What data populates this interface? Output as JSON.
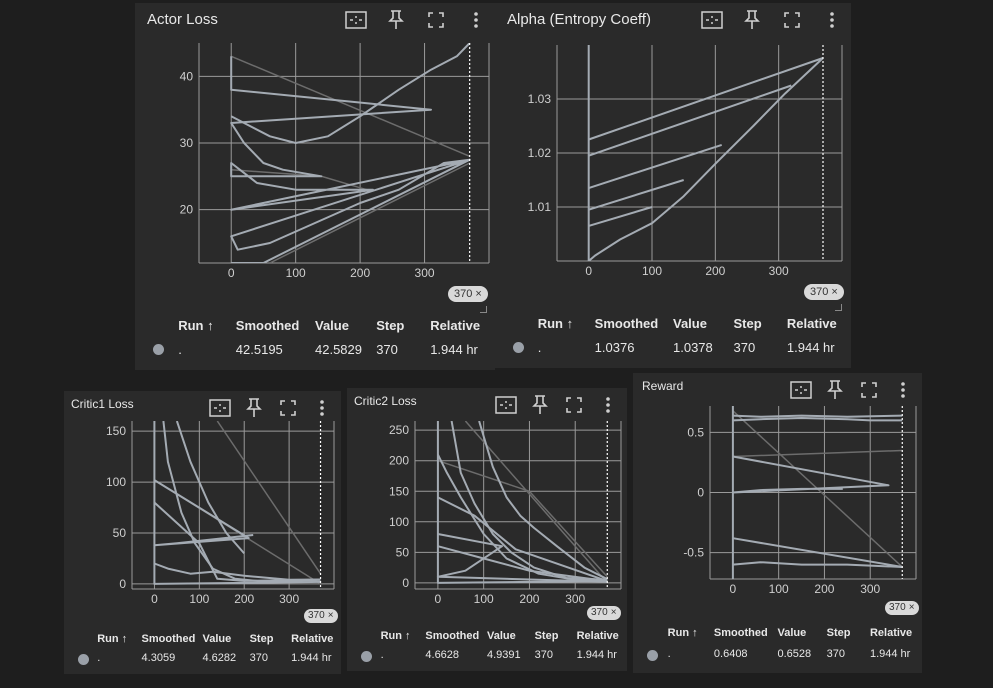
{
  "ui": {
    "colors": {
      "background": "#1e1e1e",
      "card": "#2a2a2a",
      "grid": "#9a9a9a",
      "series": "#a4abb3",
      "series_faint": "#6c6c6c"
    }
  },
  "charts": [
    {
      "title": "Actor Loss",
      "step_badge": "370",
      "table": {
        "headers": {
          "run": "Run ↑",
          "smoothed": "Smoothed",
          "value": "Value",
          "step": "Step",
          "relative": "Relative"
        },
        "row": {
          "run": ".",
          "smoothed": "42.5195",
          "value": "42.5829",
          "step": "370",
          "relative": "1.944 hr"
        }
      }
    },
    {
      "title": "Alpha (Entropy Coeff)",
      "step_badge": "370",
      "table": {
        "headers": {
          "run": "Run ↑",
          "smoothed": "Smoothed",
          "value": "Value",
          "step": "Step",
          "relative": "Relative"
        },
        "row": {
          "run": ".",
          "smoothed": "1.0376",
          "value": "1.0378",
          "step": "370",
          "relative": "1.944 hr"
        }
      }
    },
    {
      "title": "Critic1 Loss",
      "step_badge": "370",
      "table": {
        "headers": {
          "run": "Run ↑",
          "smoothed": "Smoothed",
          "value": "Value",
          "step": "Step",
          "relative": "Relative"
        },
        "row": {
          "run": ".",
          "smoothed": "4.3059",
          "value": "4.6282",
          "step": "370",
          "relative": "1.944 hr"
        }
      }
    },
    {
      "title": "Critic2 Loss",
      "step_badge": "370",
      "table": {
        "headers": {
          "run": "Run ↑",
          "smoothed": "Smoothed",
          "value": "Value",
          "step": "Step",
          "relative": "Relative"
        },
        "row": {
          "run": ".",
          "smoothed": "4.6628",
          "value": "4.9391",
          "step": "370",
          "relative": "1.944 hr"
        }
      }
    },
    {
      "title": "Reward",
      "step_badge": "370",
      "table": {
        "headers": {
          "run": "Run ↑",
          "smoothed": "Smoothed",
          "value": "Value",
          "step": "Step",
          "relative": "Relative"
        },
        "row": {
          "run": ".",
          "smoothed": "0.6408",
          "value": "0.6528",
          "step": "370",
          "relative": "1.944 hr"
        }
      }
    }
  ],
  "chart_data": [
    {
      "type": "line",
      "title": "Actor Loss",
      "xlim": [
        -50,
        400
      ],
      "ylim": [
        12,
        45
      ],
      "xticks": [
        0,
        100,
        200,
        300
      ],
      "yticks": [
        20,
        30,
        40
      ],
      "ytick_labels": [
        "20",
        "30",
        "40"
      ],
      "grid": true,
      "step_marker": 370,
      "series": [
        {
          "points": [
            [
              0,
              43
            ],
            [
              0,
              38
            ],
            [
              310,
              35
            ],
            [
              0,
              33
            ],
            [
              20,
              30
            ],
            [
              50,
              27
            ],
            [
              80,
              26
            ],
            [
              140,
              25
            ],
            [
              0,
              25
            ],
            [
              0,
              27
            ],
            [
              40,
              24
            ],
            [
              100,
              23
            ],
            [
              220,
              23
            ],
            [
              0,
              20
            ],
            [
              370,
              27.5
            ],
            [
              0,
              16
            ],
            [
              10,
              14
            ],
            [
              60,
              15
            ],
            [
              130,
              18
            ],
            [
              200,
              21
            ],
            [
              260,
              23
            ],
            [
              330,
              27
            ],
            [
              370,
              27.5
            ],
            [
              50,
              12
            ],
            [
              0,
              12
            ]
          ]
        },
        {
          "points": [
            [
              0,
              34
            ],
            [
              20,
              33
            ],
            [
              60,
              31
            ],
            [
              100,
              30
            ],
            [
              150,
              31
            ],
            [
              200,
              34
            ],
            [
              260,
              38
            ],
            [
              310,
              41
            ],
            [
              350,
              43
            ],
            [
              370,
              45
            ]
          ]
        }
      ],
      "faint_series": [
        {
          "points": [
            [
              0,
              43
            ],
            [
              370,
              28
            ]
          ]
        },
        {
          "points": [
            [
              0,
              26
            ],
            [
              140,
              25
            ],
            [
              210,
              23
            ]
          ]
        },
        {
          "points": [
            [
              60,
              12
            ],
            [
              370,
              27
            ]
          ]
        }
      ]
    },
    {
      "type": "line",
      "title": "Alpha (Entropy Coeff)",
      "xlim": [
        -50,
        400
      ],
      "ylim": [
        1.0,
        1.04
      ],
      "xticks": [
        0,
        100,
        200,
        300
      ],
      "yticks": [
        1.01,
        1.02,
        1.03
      ],
      "ytick_labels": [
        "1.01",
        "1.02",
        "1.03"
      ],
      "grid": true,
      "step_marker": 370,
      "series": [
        {
          "points": [
            [
              0,
              1.04
            ],
            [
              0,
              1.0
            ],
            [
              10,
              1.001
            ],
            [
              50,
              1.004
            ],
            [
              100,
              1.007
            ],
            [
              150,
              1.012
            ],
            [
              200,
              1.018
            ],
            [
              260,
              1.025
            ],
            [
              310,
              1.031
            ],
            [
              370,
              1.0376
            ]
          ]
        },
        {
          "points": [
            [
              0,
              1.0225
            ],
            [
              370,
              1.0376
            ]
          ]
        },
        {
          "points": [
            [
              0,
              1.0195
            ],
            [
              320,
              1.0325
            ]
          ]
        },
        {
          "points": [
            [
              0,
              1.0135
            ],
            [
              210,
              1.0215
            ]
          ]
        },
        {
          "points": [
            [
              0,
              1.0095
            ],
            [
              150,
              1.015
            ]
          ]
        },
        {
          "points": [
            [
              0,
              1.0065
            ],
            [
              100,
              1.01
            ]
          ]
        }
      ],
      "faint_series": []
    },
    {
      "type": "line",
      "title": "Critic1 Loss",
      "xlim": [
        -50,
        400
      ],
      "ylim": [
        -5,
        160
      ],
      "xticks": [
        0,
        100,
        200,
        300
      ],
      "yticks": [
        0,
        50,
        100,
        150
      ],
      "ytick_labels": [
        "0",
        "50",
        "100",
        "150"
      ],
      "grid": true,
      "step_marker": 370,
      "series": [
        {
          "points": [
            [
              0,
              160
            ],
            [
              0,
              0
            ],
            [
              370,
              2
            ]
          ]
        },
        {
          "points": [
            [
              0,
              102
            ],
            [
              210,
              45
            ],
            [
              0,
              38
            ],
            [
              50,
              40
            ],
            [
              220,
              48
            ]
          ]
        },
        {
          "points": [
            [
              0,
              80
            ],
            [
              100,
              40
            ],
            [
              140,
              5
            ],
            [
              200,
              3
            ],
            [
              370,
              4
            ]
          ]
        },
        {
          "points": [
            [
              20,
              160
            ],
            [
              30,
              120
            ],
            [
              60,
              70
            ],
            [
              90,
              40
            ],
            [
              130,
              15
            ],
            [
              180,
              5
            ],
            [
              250,
              2
            ],
            [
              370,
              4
            ]
          ]
        },
        {
          "points": [
            [
              50,
              160
            ],
            [
              80,
              120
            ],
            [
              120,
              80
            ],
            [
              160,
              50
            ],
            [
              200,
              30
            ]
          ]
        },
        {
          "points": [
            [
              0,
              20
            ],
            [
              30,
              15
            ],
            [
              80,
              10
            ],
            [
              130,
              12
            ],
            [
              200,
              8
            ],
            [
              300,
              4
            ],
            [
              370,
              4.3
            ]
          ]
        }
      ],
      "faint_series": [
        {
          "points": [
            [
              0,
              102
            ],
            [
              370,
              0
            ]
          ]
        },
        {
          "points": [
            [
              140,
              160
            ],
            [
              370,
              10
            ]
          ]
        }
      ]
    },
    {
      "type": "line",
      "title": "Critic2 Loss",
      "xlim": [
        -50,
        400
      ],
      "ylim": [
        -10,
        265
      ],
      "xticks": [
        0,
        100,
        200,
        300
      ],
      "yticks": [
        0,
        50,
        100,
        150,
        200,
        250
      ],
      "ytick_labels": [
        "0",
        "50",
        "100",
        "150",
        "200",
        "250"
      ],
      "grid": true,
      "step_marker": 370,
      "series": [
        {
          "points": [
            [
              0,
              265
            ],
            [
              0,
              0
            ],
            [
              370,
              3
            ]
          ]
        },
        {
          "points": [
            [
              0,
              210
            ],
            [
              20,
              180
            ],
            [
              50,
              140
            ],
            [
              100,
              80
            ],
            [
              150,
              40
            ],
            [
              220,
              15
            ],
            [
              300,
              5
            ],
            [
              370,
              4.7
            ]
          ]
        },
        {
          "points": [
            [
              30,
              265
            ],
            [
              50,
              180
            ],
            [
              80,
              130
            ],
            [
              120,
              80
            ],
            [
              160,
              50
            ],
            [
              210,
              25
            ],
            [
              280,
              8
            ],
            [
              370,
              5
            ]
          ]
        },
        {
          "points": [
            [
              0,
              140
            ],
            [
              80,
              110
            ],
            [
              170,
              55
            ],
            [
              370,
              3
            ]
          ]
        },
        {
          "points": [
            [
              0,
              80
            ],
            [
              140,
              60
            ],
            [
              60,
              20
            ],
            [
              0,
              10
            ],
            [
              370,
              2
            ]
          ]
        },
        {
          "points": [
            [
              0,
              60
            ],
            [
              100,
              40
            ],
            [
              200,
              20
            ],
            [
              370,
              3
            ]
          ]
        },
        {
          "points": [
            [
              90,
              265
            ],
            [
              120,
              190
            ],
            [
              150,
              140
            ],
            [
              180,
              110
            ],
            [
              210,
              90
            ],
            [
              260,
              60
            ],
            [
              320,
              25
            ],
            [
              370,
              6
            ]
          ]
        }
      ],
      "faint_series": [
        {
          "points": [
            [
              60,
              265
            ],
            [
              370,
              0
            ]
          ]
        },
        {
          "points": [
            [
              0,
              200
            ],
            [
              200,
              150
            ],
            [
              370,
              10
            ]
          ]
        }
      ]
    },
    {
      "type": "line",
      "title": "Reward",
      "xlim": [
        -50,
        400
      ],
      "ylim": [
        -0.72,
        0.72
      ],
      "xticks": [
        0,
        100,
        200,
        300
      ],
      "yticks": [
        -0.5,
        0,
        0.5
      ],
      "ytick_labels": [
        "-0.5",
        "0",
        "0.5"
      ],
      "grid": true,
      "step_marker": 370,
      "series": [
        {
          "points": [
            [
              0,
              0.72
            ],
            [
              0,
              -0.72
            ]
          ]
        },
        {
          "points": [
            [
              0,
              0.64
            ],
            [
              60,
              0.63
            ],
            [
              150,
              0.64
            ],
            [
              250,
              0.63
            ],
            [
              370,
              0.64
            ]
          ]
        },
        {
          "points": [
            [
              0,
              0.6
            ],
            [
              60,
              0.61
            ],
            [
              150,
              0.62
            ],
            [
              250,
              0.61
            ],
            [
              300,
              0.6
            ],
            [
              370,
              0.6
            ]
          ]
        },
        {
          "points": [
            [
              0,
              0.3
            ],
            [
              340,
              0.06
            ],
            [
              0,
              0
            ],
            [
              60,
              0.02
            ],
            [
              150,
              0.03
            ],
            [
              240,
              0.03
            ]
          ]
        },
        {
          "points": [
            [
              0,
              -0.38
            ],
            [
              370,
              -0.62
            ]
          ]
        },
        {
          "points": [
            [
              0,
              -0.6
            ],
            [
              60,
              -0.58
            ],
            [
              150,
              -0.6
            ],
            [
              250,
              -0.6
            ],
            [
              370,
              -0.62
            ]
          ]
        }
      ],
      "faint_series": [
        {
          "points": [
            [
              0,
              0.68
            ],
            [
              370,
              -0.62
            ]
          ]
        },
        {
          "points": [
            [
              0,
              0.3
            ],
            [
              370,
              0.35
            ]
          ]
        }
      ]
    }
  ]
}
